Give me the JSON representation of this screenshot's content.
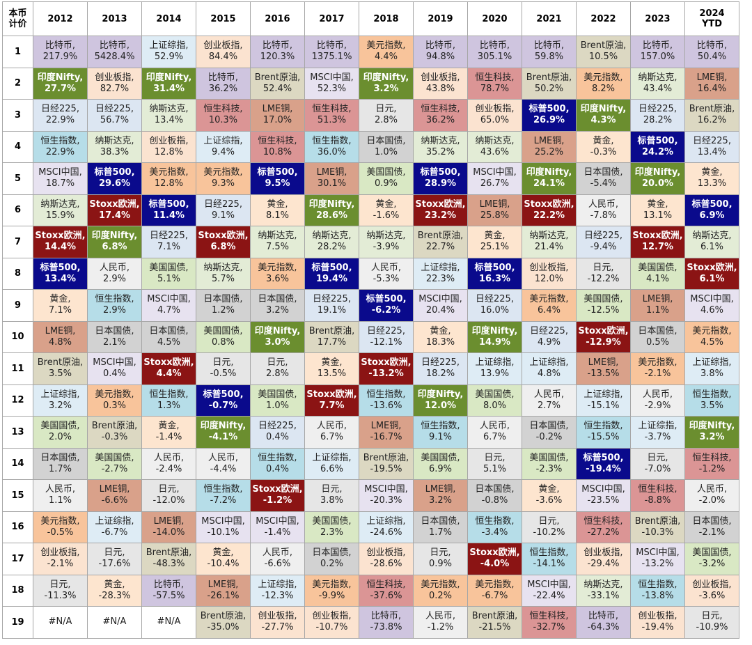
{
  "corner_label": [
    "本币",
    "计价"
  ],
  "asset_colors": {
    "比特币": {
      "bg": "#cfc5df",
      "fg": "#222222"
    },
    "印度Nifty": {
      "bg": "#6b8e2f",
      "fg": "#ffffff"
    },
    "日经225": {
      "bg": "#dce6f2",
      "fg": "#222222"
    },
    "恒生指数": {
      "bg": "#b6dde8",
      "fg": "#222222"
    },
    "MSCI中国": {
      "bg": "#e7e2f0",
      "fg": "#222222"
    },
    "纳斯达克": {
      "bg": "#e3ecd6",
      "fg": "#222222"
    },
    "Stoxx欧洲": {
      "bg": "#8b1414",
      "fg": "#ffffff"
    },
    "标普500": {
      "bg": "#0a0a8c",
      "fg": "#ffffff"
    },
    "黄金": {
      "bg": "#fde5cf",
      "fg": "#222222"
    },
    "LME铜": {
      "bg": "#d9a18a",
      "fg": "#222222"
    },
    "Brent原油": {
      "bg": "#dcd8c2",
      "fg": "#222222"
    },
    "上证综指": {
      "bg": "#deecf5",
      "fg": "#222222"
    },
    "美国国债": {
      "bg": "#d9e8c4",
      "fg": "#222222"
    },
    "日本国债": {
      "bg": "#d2d2d2",
      "fg": "#222222"
    },
    "人民币": {
      "bg": "#efefef",
      "fg": "#222222"
    },
    "美元指数": {
      "bg": "#f8c49b",
      "fg": "#222222"
    },
    "创业板指": {
      "bg": "#fbe3d0",
      "fg": "#222222"
    },
    "日元": {
      "bg": "#e6e6e6",
      "fg": "#222222"
    },
    "恒生科技": {
      "bg": "#db9595",
      "fg": "#222222"
    },
    "#N/A": {
      "bg": "#ffffff",
      "fg": "#222222"
    }
  },
  "chart_data": {
    "type": "table",
    "columns": [
      "2012",
      "2013",
      "2014",
      "2015",
      "2016",
      "2017",
      "2018",
      "2019",
      "2020",
      "2021",
      "2022",
      "2023",
      "2024\nYTD"
    ],
    "ranks": [
      1,
      2,
      3,
      4,
      5,
      6,
      7,
      8,
      9,
      10,
      11,
      12,
      13,
      14,
      15,
      16,
      17,
      18,
      19
    ],
    "cells": [
      [
        [
          "比特币,",
          "217.9%"
        ],
        [
          "比特币,",
          "5428.4%"
        ],
        [
          "上证综指,",
          "52.9%"
        ],
        [
          "创业板指,",
          "84.4%"
        ],
        [
          "比特币,",
          "120.3%"
        ],
        [
          "比特币,",
          "1375.1%"
        ],
        [
          "美元指数,",
          "4.4%"
        ],
        [
          "比特币,",
          "94.8%"
        ],
        [
          "比特币,",
          "305.1%"
        ],
        [
          "比特币,",
          "59.8%"
        ],
        [
          "Brent原油,",
          "10.5%"
        ],
        [
          "比特币,",
          "157.0%"
        ],
        [
          "比特币,",
          "50.4%"
        ]
      ],
      [
        [
          "印度Nifty,",
          "27.7%"
        ],
        [
          "创业板指,",
          "82.7%"
        ],
        [
          "印度Nifty,",
          "31.4%"
        ],
        [
          "比特币,",
          "36.2%"
        ],
        [
          "Brent原油,",
          "52.4%"
        ],
        [
          "MSCI中国,",
          "52.3%"
        ],
        [
          "印度Nifty,",
          "3.2%"
        ],
        [
          "创业板指,",
          "43.8%"
        ],
        [
          "恒生科技,",
          "78.7%"
        ],
        [
          "Brent原油,",
          "50.2%"
        ],
        [
          "美元指数,",
          "8.2%"
        ],
        [
          "纳斯达克,",
          "43.4%"
        ],
        [
          "LME铜,",
          "16.4%"
        ]
      ],
      [
        [
          "日经225,",
          "22.9%"
        ],
        [
          "日经225,",
          "56.7%"
        ],
        [
          "纳斯达克,",
          "13.4%"
        ],
        [
          "恒生科技,",
          "10.3%"
        ],
        [
          "LME铜,",
          "17.0%"
        ],
        [
          "恒生科技,",
          "51.3%"
        ],
        [
          "日元,",
          "2.8%"
        ],
        [
          "恒生科技,",
          "36.2%"
        ],
        [
          "创业板指,",
          "65.0%"
        ],
        [
          "标普500,",
          "26.9%"
        ],
        [
          "印度Nifty,",
          "4.3%"
        ],
        [
          "日经225,",
          "28.2%"
        ],
        [
          "Brent原油,",
          "16.2%"
        ]
      ],
      [
        [
          "恒生指数,",
          "22.9%"
        ],
        [
          "纳斯达克,",
          "38.3%"
        ],
        [
          "创业板指,",
          "12.8%"
        ],
        [
          "上证综指,",
          "9.4%"
        ],
        [
          "恒生科技,",
          "10.8%"
        ],
        [
          "恒生指数,",
          "36.0%"
        ],
        [
          "日本国债,",
          "1.0%"
        ],
        [
          "纳斯达克,",
          "35.2%"
        ],
        [
          "纳斯达克,",
          "43.6%"
        ],
        [
          "LME铜,",
          "25.2%"
        ],
        [
          "黄金,",
          "-0.3%"
        ],
        [
          "标普500,",
          "24.2%"
        ],
        [
          "日经225,",
          "13.4%"
        ]
      ],
      [
        [
          "MSCI中国,",
          "18.7%"
        ],
        [
          "标普500,",
          "29.6%"
        ],
        [
          "美元指数,",
          "12.8%"
        ],
        [
          "美元指数,",
          "9.3%"
        ],
        [
          "标普500,",
          "9.5%"
        ],
        [
          "LME铜,",
          "30.1%"
        ],
        [
          "美国国债,",
          "0.9%"
        ],
        [
          "标普500,",
          "28.9%"
        ],
        [
          "MSCI中国,",
          "26.7%"
        ],
        [
          "印度Nifty,",
          "24.1%"
        ],
        [
          "日本国债,",
          "-5.4%"
        ],
        [
          "印度Nifty,",
          "20.0%"
        ],
        [
          "黄金,",
          "13.3%"
        ]
      ],
      [
        [
          "纳斯达克,",
          "15.9%"
        ],
        [
          "Stoxx欧洲,",
          "17.4%"
        ],
        [
          "标普500,",
          "11.4%"
        ],
        [
          "日经225,",
          "9.1%"
        ],
        [
          "黄金,",
          "8.1%"
        ],
        [
          "印度Nifty,",
          "28.6%"
        ],
        [
          "黄金,",
          "-1.6%"
        ],
        [
          "Stoxx欧洲,",
          "23.2%"
        ],
        [
          "LME铜,",
          "25.8%"
        ],
        [
          "Stoxx欧洲,",
          "22.2%"
        ],
        [
          "人民币,",
          "-7.8%"
        ],
        [
          "黄金,",
          "13.1%"
        ],
        [
          "标普500,",
          "6.9%"
        ]
      ],
      [
        [
          "Stoxx欧洲,",
          "14.4%"
        ],
        [
          "印度Nifty,",
          "6.8%"
        ],
        [
          "日经225,",
          "7.1%"
        ],
        [
          "Stoxx欧洲,",
          "6.8%"
        ],
        [
          "纳斯达克,",
          "7.5%"
        ],
        [
          "纳斯达克,",
          "28.2%"
        ],
        [
          "纳斯达克,",
          "-3.9%"
        ],
        [
          "Brent原油,",
          "22.7%"
        ],
        [
          "黄金,",
          "25.1%"
        ],
        [
          "纳斯达克,",
          "21.4%"
        ],
        [
          "日经225,",
          "-9.4%"
        ],
        [
          "Stoxx欧洲,",
          "12.7%"
        ],
        [
          "纳斯达克,",
          "6.1%"
        ]
      ],
      [
        [
          "标普500,",
          "13.4%"
        ],
        [
          "人民币,",
          "2.9%"
        ],
        [
          "美国国债,",
          "5.1%"
        ],
        [
          "纳斯达克,",
          "5.7%"
        ],
        [
          "美元指数,",
          "3.6%"
        ],
        [
          "标普500,",
          "19.4%"
        ],
        [
          "人民币,",
          "-5.3%"
        ],
        [
          "上证综指,",
          "22.3%"
        ],
        [
          "标普500,",
          "16.3%"
        ],
        [
          "创业板指,",
          "12.0%"
        ],
        [
          "日元,",
          "-12.2%"
        ],
        [
          "美国国债,",
          "4.1%"
        ],
        [
          "Stoxx欧洲,",
          "6.1%"
        ]
      ],
      [
        [
          "黄金,",
          "7.1%"
        ],
        [
          "恒生指数,",
          "2.9%"
        ],
        [
          "MSCI中国,",
          "4.7%"
        ],
        [
          "日本国债,",
          "1.2%"
        ],
        [
          "日本国债,",
          "3.2%"
        ],
        [
          "日经225,",
          "19.1%"
        ],
        [
          "标普500,",
          "-6.2%"
        ],
        [
          "MSCI中国,",
          "20.4%"
        ],
        [
          "日经225,",
          "16.0%"
        ],
        [
          "美元指数,",
          "6.4%"
        ],
        [
          "美国国债,",
          "-12.5%"
        ],
        [
          "LME铜,",
          "1.1%"
        ],
        [
          "MSCI中国,",
          "4.6%"
        ]
      ],
      [
        [
          "LME铜,",
          "4.8%"
        ],
        [
          "日本国债,",
          "2.1%"
        ],
        [
          "日本国债,",
          "4.5%"
        ],
        [
          "美国国债,",
          "0.8%"
        ],
        [
          "印度Nifty,",
          "3.0%"
        ],
        [
          "Brent原油,",
          "17.7%"
        ],
        [
          "日经225,",
          "-12.1%"
        ],
        [
          "黄金,",
          "18.3%"
        ],
        [
          "印度Nifty,",
          "14.9%"
        ],
        [
          "日经225,",
          "4.9%"
        ],
        [
          "Stoxx欧洲,",
          "-12.9%"
        ],
        [
          "日本国债,",
          "0.5%"
        ],
        [
          "美元指数,",
          "4.5%"
        ]
      ],
      [
        [
          "Brent原油,",
          "3.5%"
        ],
        [
          "MSCI中国,",
          "0.4%"
        ],
        [
          "Stoxx欧洲,",
          "4.4%"
        ],
        [
          "日元,",
          "-0.5%"
        ],
        [
          "日元,",
          "2.8%"
        ],
        [
          "黄金,",
          "13.5%"
        ],
        [
          "Stoxx欧洲,",
          "-13.2%"
        ],
        [
          "日经225,",
          "18.2%"
        ],
        [
          "上证综指,",
          "13.9%"
        ],
        [
          "上证综指,",
          "4.8%"
        ],
        [
          "LME铜,",
          "-13.5%"
        ],
        [
          "美元指数,",
          "-2.1%"
        ],
        [
          "上证综指,",
          "3.8%"
        ]
      ],
      [
        [
          "上证综指,",
          "3.2%"
        ],
        [
          "美元指数,",
          "0.3%"
        ],
        [
          "恒生指数,",
          "1.3%"
        ],
        [
          "标普500,",
          "-0.7%"
        ],
        [
          "美国国债,",
          "1.0%"
        ],
        [
          "Stoxx欧洲,",
          "7.7%"
        ],
        [
          "恒生指数,",
          "-13.6%"
        ],
        [
          "印度Nifty,",
          "12.0%"
        ],
        [
          "美国国债,",
          "8.0%"
        ],
        [
          "人民币,",
          "2.7%"
        ],
        [
          "上证综指,",
          "-15.1%"
        ],
        [
          "人民币,",
          "-2.9%"
        ],
        [
          "恒生指数,",
          "3.5%"
        ]
      ],
      [
        [
          "美国国债,",
          "2.0%"
        ],
        [
          "Brent原油,",
          "-0.3%"
        ],
        [
          "黄金,",
          "-1.4%"
        ],
        [
          "印度Nifty,",
          "-4.1%"
        ],
        [
          "日经225,",
          "0.4%"
        ],
        [
          "人民币,",
          "6.7%"
        ],
        [
          "LME铜,",
          "-16.7%"
        ],
        [
          "恒生指数,",
          "9.1%"
        ],
        [
          "人民币,",
          "6.7%"
        ],
        [
          "日本国债,",
          "-0.2%"
        ],
        [
          "恒生指数,",
          "-15.5%"
        ],
        [
          "上证综指,",
          "-3.7%"
        ],
        [
          "印度Nifty,",
          "3.2%"
        ]
      ],
      [
        [
          "日本国债,",
          "1.7%"
        ],
        [
          "美国国债,",
          "-2.7%"
        ],
        [
          "人民币,",
          "-2.4%"
        ],
        [
          "人民币,",
          "-4.4%"
        ],
        [
          "恒生指数,",
          "0.4%"
        ],
        [
          "上证综指,",
          "6.6%"
        ],
        [
          "Brent原油,",
          "-19.5%"
        ],
        [
          "美国国债,",
          "6.9%"
        ],
        [
          "日元,",
          "5.1%"
        ],
        [
          "美国国债,",
          "-2.3%"
        ],
        [
          "标普500,",
          "-19.4%"
        ],
        [
          "日元,",
          "-7.0%"
        ],
        [
          "恒生科技,",
          "-1.2%"
        ]
      ],
      [
        [
          "人民币,",
          "1.1%"
        ],
        [
          "LME铜,",
          "-6.6%"
        ],
        [
          "日元,",
          "-12.0%"
        ],
        [
          "恒生指数,",
          "-7.2%"
        ],
        [
          "Stoxx欧洲,",
          "-1.2%"
        ],
        [
          "日元,",
          "3.8%"
        ],
        [
          "MSCI中国,",
          "-20.3%"
        ],
        [
          "LME铜,",
          "3.2%"
        ],
        [
          "日本国债,",
          "-0.8%"
        ],
        [
          "黄金,",
          "-3.6%"
        ],
        [
          "MSCI中国,",
          "-23.5%"
        ],
        [
          "恒生科技,",
          "-8.8%"
        ],
        [
          "人民币,",
          "-2.0%"
        ]
      ],
      [
        [
          "美元指数,",
          "-0.5%"
        ],
        [
          "上证综指,",
          "-6.7%"
        ],
        [
          "LME铜,",
          "-14.0%"
        ],
        [
          "MSCI中国,",
          "-10.1%"
        ],
        [
          "MSCI中国,",
          "-1.4%"
        ],
        [
          "美国国债,",
          "2.3%"
        ],
        [
          "上证综指,",
          "-24.6%"
        ],
        [
          "日本国债,",
          "1.7%"
        ],
        [
          "恒生指数,",
          "-3.4%"
        ],
        [
          "日元,",
          "-10.2%"
        ],
        [
          "恒生科技,",
          "-27.2%"
        ],
        [
          "Brent原油,",
          "-10.3%"
        ],
        [
          "日本国债,",
          "-2.1%"
        ]
      ],
      [
        [
          "创业板指,",
          "-2.1%"
        ],
        [
          "日元,",
          "-17.6%"
        ],
        [
          "Brent原油,",
          "-48.3%"
        ],
        [
          "黄金,",
          "-10.4%"
        ],
        [
          "人民币,",
          "-6.6%"
        ],
        [
          "日本国债,",
          "0.2%"
        ],
        [
          "创业板指,",
          "-28.6%"
        ],
        [
          "日元,",
          "0.9%"
        ],
        [
          "Stoxx欧洲,",
          "-4.0%"
        ],
        [
          "恒生指数,",
          "-14.1%"
        ],
        [
          "创业板指,",
          "-29.4%"
        ],
        [
          "MSCI中国,",
          "-13.2%"
        ],
        [
          "美国国债,",
          "-3.2%"
        ]
      ],
      [
        [
          "日元,",
          "-11.3%"
        ],
        [
          "黄金,",
          "-28.3%"
        ],
        [
          "比特币,",
          "-57.5%"
        ],
        [
          "LME铜,",
          "-26.1%"
        ],
        [
          "上证综指,",
          "-12.3%"
        ],
        [
          "美元指数,",
          "-9.9%"
        ],
        [
          "恒生科技,",
          "-37.6%"
        ],
        [
          "美元指数,",
          "0.2%"
        ],
        [
          "美元指数,",
          "-6.7%"
        ],
        [
          "MSCI中国,",
          "-22.4%"
        ],
        [
          "纳斯达克,",
          "-33.1%"
        ],
        [
          "恒生指数,",
          "-13.8%"
        ],
        [
          "创业板指,",
          "-3.6%"
        ]
      ],
      [
        [
          "#N/A",
          ""
        ],
        [
          "#N/A",
          ""
        ],
        [
          "#N/A",
          ""
        ],
        [
          "Brent原油,",
          "-35.0%"
        ],
        [
          "创业板指,",
          "-27.7%"
        ],
        [
          "创业板指,",
          "-10.7%"
        ],
        [
          "比特币,",
          "-73.8%"
        ],
        [
          "人民币,",
          "-1.2%"
        ],
        [
          "Brent原油,",
          "-21.5%"
        ],
        [
          "恒生科技,",
          "-32.7%"
        ],
        [
          "比特币,",
          "-64.3%"
        ],
        [
          "创业板指,",
          "-19.4%"
        ],
        [
          "日元,",
          "-10.9%"
        ]
      ]
    ]
  }
}
